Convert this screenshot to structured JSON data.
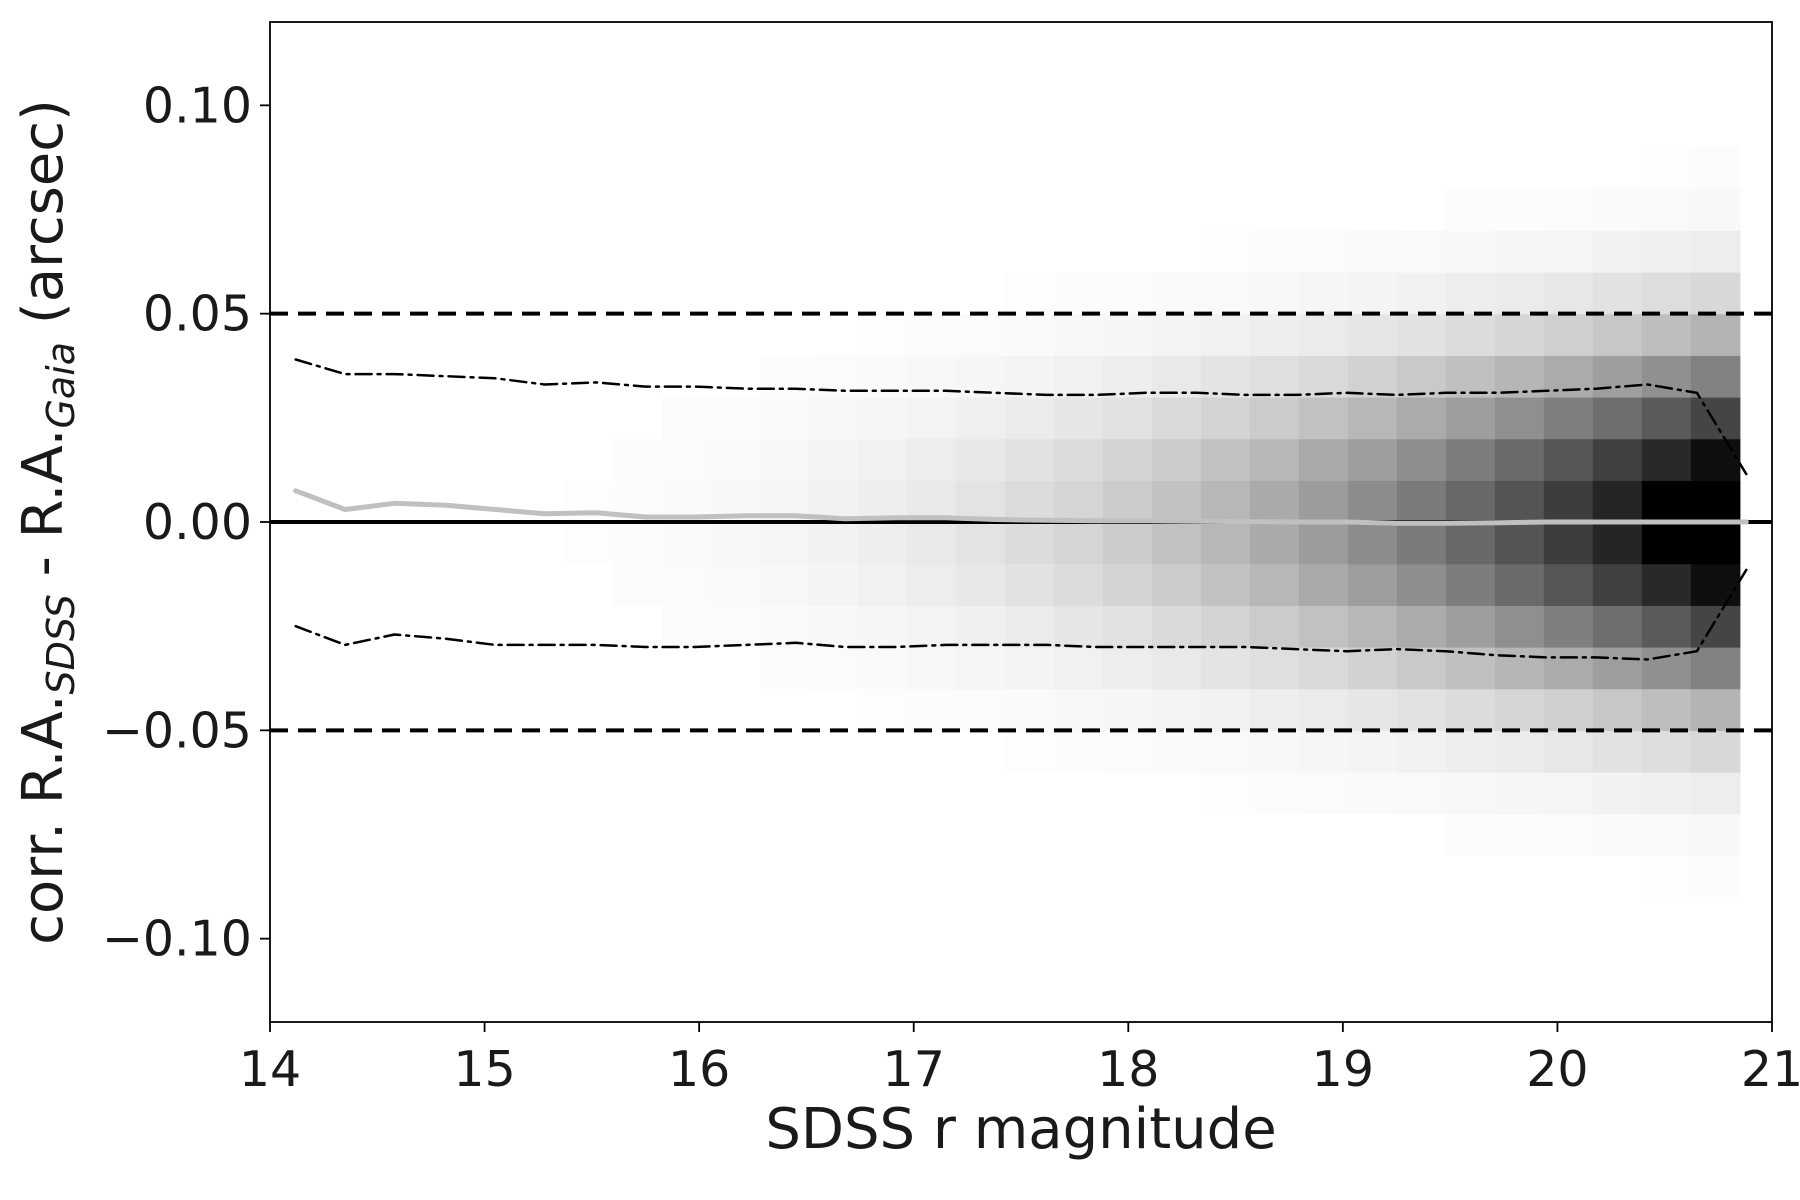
{
  "chart_data": {
    "type": "heatmap",
    "xlabel": "SDSS r magnitude",
    "ylabel": {
      "prefix": "corr. R.A.",
      "sub1": "SDSS",
      "middle": " - R.A.",
      "sub2": "Gaia",
      "suffix": " (arcsec)"
    },
    "xlim": [
      14,
      21
    ],
    "ylim": [
      -0.12,
      0.12
    ],
    "xticks": [
      14,
      15,
      16,
      17,
      18,
      19,
      20,
      21
    ],
    "xtick_labels": [
      "14",
      "15",
      "16",
      "17",
      "18",
      "19",
      "20",
      "21"
    ],
    "yticks": [
      -0.1,
      -0.05,
      0.0,
      0.05,
      0.1
    ],
    "ytick_labels": [
      "−0.10",
      "−0.05",
      "0.00",
      "0.05",
      "0.10"
    ],
    "grid": false,
    "colormap": "Greys",
    "reference_lines": [
      {
        "y": 0.05,
        "style": "dashed",
        "color": "#000000"
      },
      {
        "y": -0.05,
        "style": "dashed",
        "color": "#000000"
      },
      {
        "y": 0.0,
        "style": "solid",
        "color": "#000000"
      }
    ],
    "series": [
      {
        "style": "dashdot",
        "color": "#000000",
        "x": [
          14.12,
          14.35,
          14.58,
          14.82,
          15.05,
          15.28,
          15.52,
          15.75,
          15.98,
          16.22,
          16.45,
          16.68,
          16.92,
          17.15,
          17.38,
          17.62,
          17.85,
          18.08,
          18.32,
          18.55,
          18.78,
          19.02,
          19.25,
          19.48,
          19.72,
          19.95,
          20.18,
          20.42,
          20.65,
          20.88
        ],
        "y": [
          0.039,
          0.0355,
          0.0355,
          0.035,
          0.0345,
          0.033,
          0.0335,
          0.0325,
          0.0325,
          0.032,
          0.032,
          0.0315,
          0.0315,
          0.0315,
          0.031,
          0.0305,
          0.0305,
          0.031,
          0.031,
          0.0305,
          0.0305,
          0.031,
          0.0305,
          0.031,
          0.031,
          0.0315,
          0.032,
          0.033,
          0.031,
          0.0115
        ]
      },
      {
        "style": "dashdot",
        "color": "#000000",
        "x": [
          14.12,
          14.35,
          14.58,
          14.82,
          15.05,
          15.28,
          15.52,
          15.75,
          15.98,
          16.22,
          16.45,
          16.68,
          16.92,
          17.15,
          17.38,
          17.62,
          17.85,
          18.08,
          18.32,
          18.55,
          18.78,
          19.02,
          19.25,
          19.48,
          19.72,
          19.95,
          20.18,
          20.42,
          20.65,
          20.88
        ],
        "y": [
          -0.025,
          -0.0295,
          -0.027,
          -0.028,
          -0.0295,
          -0.0295,
          -0.0295,
          -0.03,
          -0.03,
          -0.0295,
          -0.029,
          -0.03,
          -0.03,
          -0.0295,
          -0.0295,
          -0.0295,
          -0.03,
          -0.03,
          -0.03,
          -0.03,
          -0.0305,
          -0.031,
          -0.0305,
          -0.031,
          -0.032,
          -0.0325,
          -0.0325,
          -0.033,
          -0.031,
          -0.0115
        ]
      },
      {
        "style": "solid",
        "color": "#c0c0c0",
        "x": [
          14.12,
          14.35,
          14.58,
          14.82,
          15.05,
          15.28,
          15.52,
          15.75,
          15.98,
          16.22,
          16.45,
          16.68,
          16.92,
          17.15,
          17.38,
          17.62,
          17.85,
          18.08,
          18.32,
          18.55,
          18.78,
          19.02,
          19.25,
          19.48,
          19.72,
          19.95,
          20.18,
          20.42,
          20.65,
          20.88
        ],
        "y": [
          0.0075,
          0.003,
          0.0045,
          0.004,
          0.003,
          0.002,
          0.0022,
          0.0012,
          0.0012,
          0.0015,
          0.0015,
          0.0008,
          0.001,
          0.001,
          0.0006,
          0.0004,
          0.0003,
          0.0003,
          0.0002,
          0.0001,
          0.0,
          0.0,
          -0.0003,
          -0.0003,
          -0.0002,
          0.0,
          0.0,
          0.0,
          0.0,
          0.0
        ]
      }
    ]
  }
}
